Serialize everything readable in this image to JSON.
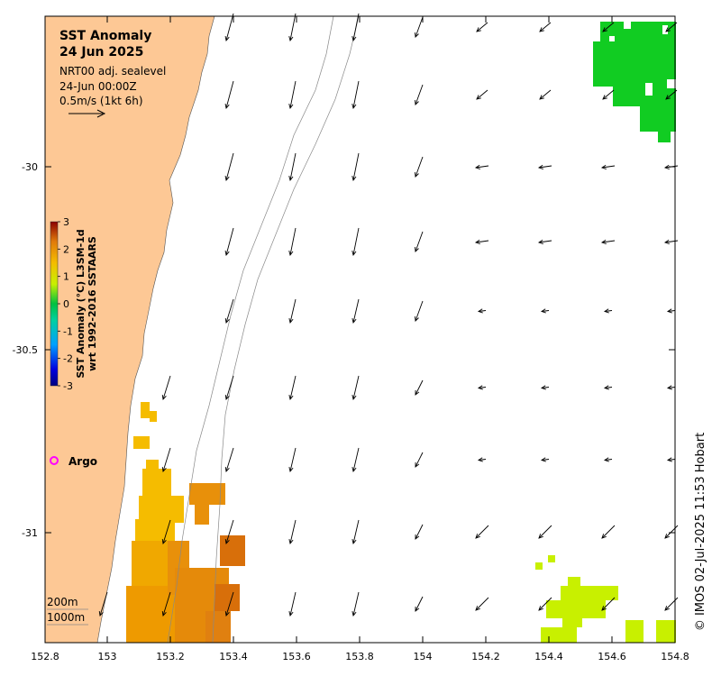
{
  "title": "SST Anomaly",
  "date": "24 Jun 2025",
  "product": "NRT00 adj. sealevel",
  "timestamp": "24-Jun 00:00Z",
  "scale_text": "0.5m/s (1kt 6h)",
  "colorbar": {
    "title_line1": "SST Anomaly (°C) L3SM-1d",
    "title_line2": "wrt 1992-2016 SSTAARS",
    "ticks": [
      "-3",
      "-2",
      "-1",
      "0",
      "1",
      "2",
      "3"
    ]
  },
  "legend": {
    "argo_label": "Argo",
    "argo_color": "#ff00ff",
    "depth_200": "200m",
    "depth_1000": "1000m"
  },
  "axes": {
    "x_ticks": [
      "152.8",
      "153",
      "153.2",
      "153.4",
      "153.6",
      "153.8",
      "154",
      "154.2",
      "154.4",
      "154.6",
      "154.8"
    ],
    "y_ticks": [
      "-30",
      "-30.5",
      "-31"
    ]
  },
  "credit": "© IMOS 02-Jul-2025 11:53 Hobart",
  "colors": {
    "land": "#fdc895",
    "anomaly_warm": "#f5bc00",
    "anomaly_hot": "#e07a0a",
    "anomaly_green": "#11cc22",
    "anomaly_lime": "#c8f000"
  }
}
